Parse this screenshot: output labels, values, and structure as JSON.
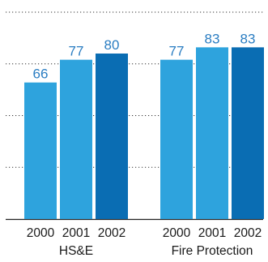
{
  "chart_data": {
    "type": "bar",
    "ylim": [
      0,
      100
    ],
    "grid": true,
    "groups": [
      {
        "label": "HS&E",
        "categories": [
          "2000",
          "2001",
          "2002"
        ],
        "values": [
          66,
          77,
          80
        ]
      },
      {
        "label": "Fire Protection",
        "categories": [
          "2000",
          "2001",
          "2002"
        ],
        "values": [
          77,
          83,
          83
        ]
      }
    ],
    "bar_colors": [
      "#2ea3dd",
      "#2ea3dd",
      "#0a6db3"
    ],
    "label_color": "#2a7dc2",
    "grid_color": "#333333",
    "baseline_color": "#222222"
  }
}
